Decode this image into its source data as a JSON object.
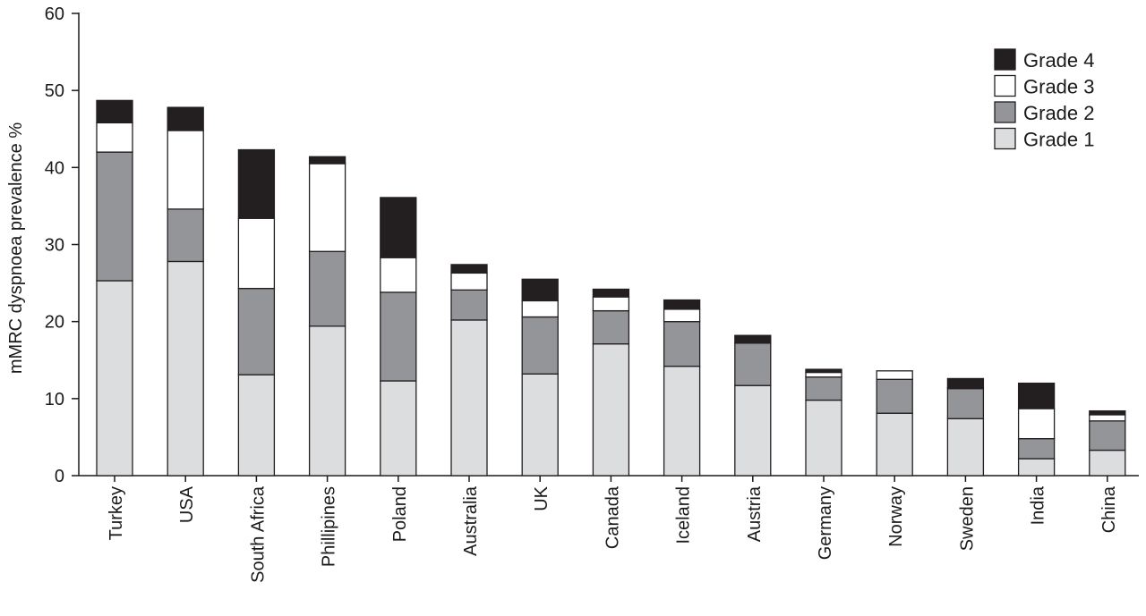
{
  "chart_data": {
    "type": "bar",
    "stacked": true,
    "title": "",
    "xlabel": "",
    "ylabel": "mMRC dyspnoea prevalence %",
    "ylim": [
      0,
      60
    ],
    "yticks": [
      0,
      10,
      20,
      30,
      40,
      50,
      60
    ],
    "grid": false,
    "legend_position": "top-right",
    "categories": [
      "Turkey",
      "USA",
      "South Africa",
      "Phillipines",
      "Poland",
      "Australia",
      "UK",
      "Canada",
      "Iceland",
      "Austria",
      "Germany",
      "Norway",
      "Sweden",
      "India",
      "China"
    ],
    "series": [
      {
        "name": "Grade 1",
        "color": "#dcdddf",
        "values": [
          25.3,
          27.8,
          13.1,
          19.4,
          12.3,
          20.2,
          13.2,
          17.1,
          14.2,
          11.7,
          9.8,
          8.1,
          7.4,
          2.2,
          3.3
        ]
      },
      {
        "name": "Grade 2",
        "color": "#939598",
        "values": [
          16.7,
          6.8,
          11.2,
          9.7,
          11.5,
          3.9,
          7.4,
          4.3,
          5.8,
          5.5,
          3.0,
          4.4,
          3.9,
          2.6,
          3.8
        ]
      },
      {
        "name": "Grade 3",
        "color": "#ffffff",
        "values": [
          3.8,
          10.2,
          9.1,
          11.4,
          4.5,
          2.2,
          2.1,
          1.8,
          1.6,
          0.1,
          0.6,
          1.1,
          0.1,
          3.9,
          0.8
        ]
      },
      {
        "name": "Grade 4",
        "color": "#231f20",
        "values": [
          2.9,
          3.0,
          8.9,
          0.9,
          7.8,
          1.1,
          2.8,
          1.0,
          1.2,
          0.9,
          0.4,
          0.0,
          1.2,
          3.3,
          0.5
        ]
      }
    ]
  }
}
